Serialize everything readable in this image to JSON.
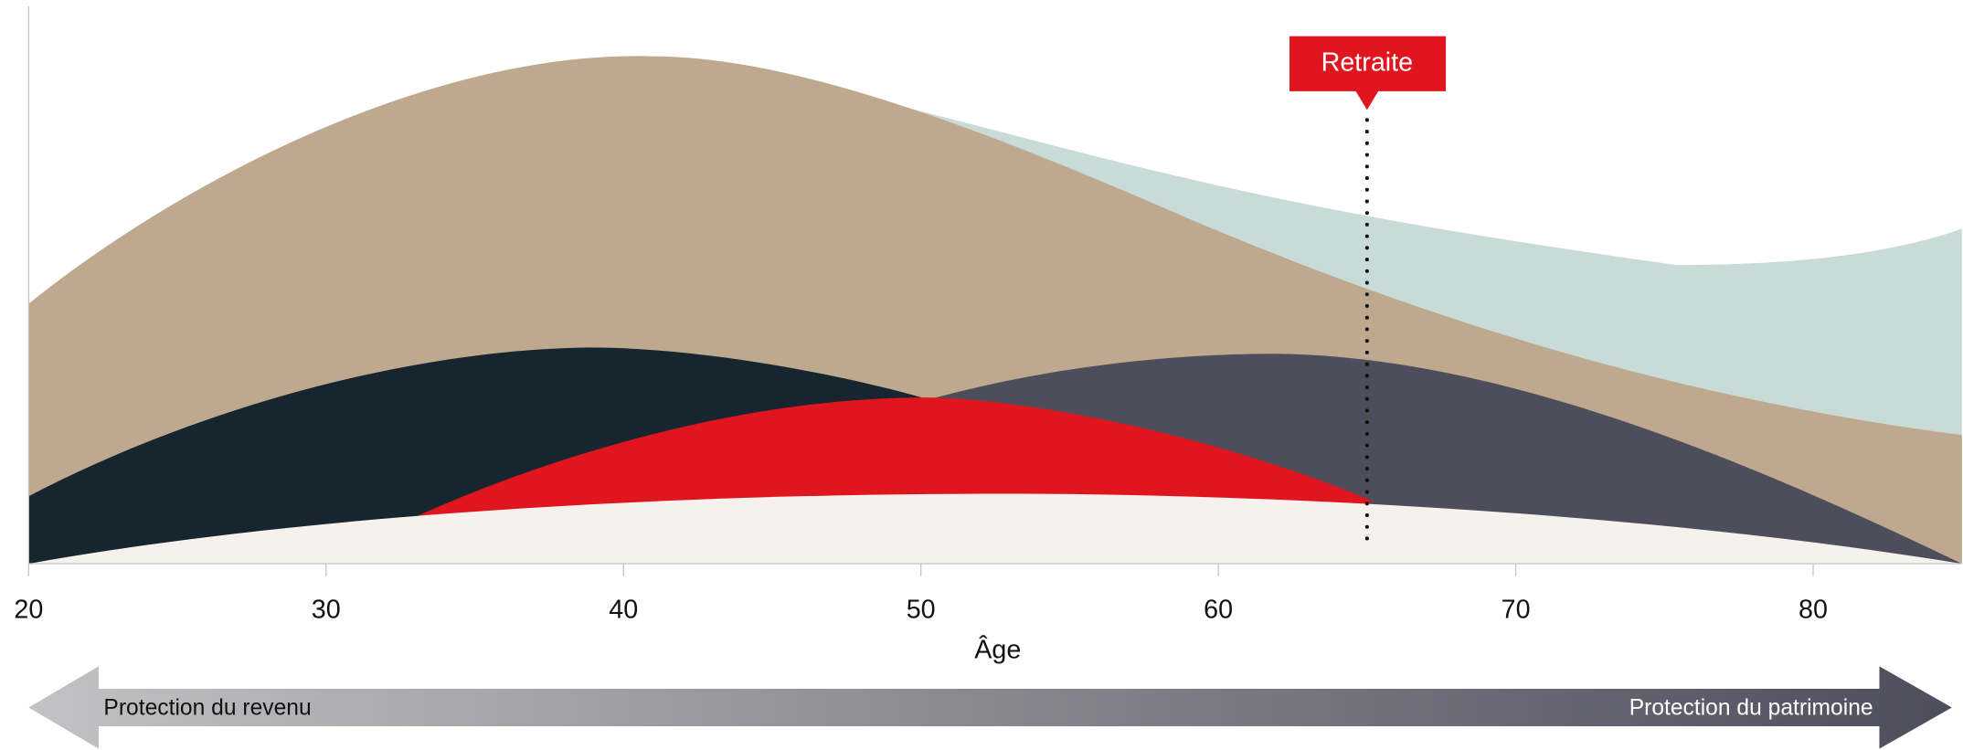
{
  "chart_data": {
    "type": "area",
    "xlabel": "Âge",
    "xlim": [
      20,
      85
    ],
    "xticks": [
      20,
      30,
      40,
      50,
      60,
      70,
      80
    ],
    "annotation": {
      "label": "Retraite",
      "x": 65
    },
    "arrow": {
      "left": "Protection du revenu",
      "right": "Protection du patrimoine"
    }
  }
}
